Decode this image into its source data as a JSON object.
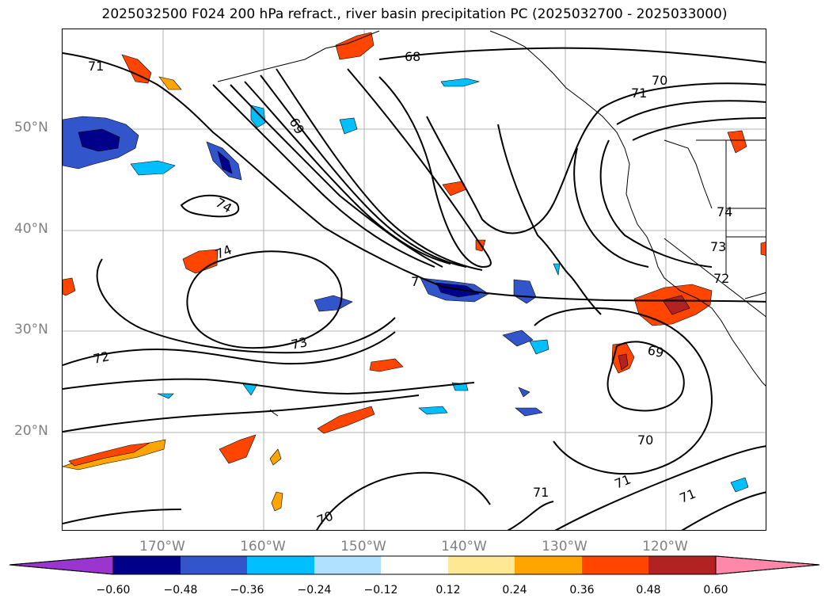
{
  "title": "2025032500 F024 200 hPa refract., river basin precipitation PC (2025032700 - 2025033000)",
  "latitude_labels": [
    "50°N",
    "40°N",
    "30°N",
    "20°N"
  ],
  "longitude_labels": [
    "170°W",
    "160°W",
    "150°W",
    "140°W",
    "130°W",
    "120°W"
  ],
  "contour_labels": [
    "71",
    "68",
    "70",
    "71",
    "69",
    "74",
    "74",
    "74",
    "73",
    "72",
    "7",
    "73",
    "72",
    "69",
    "70",
    "71",
    "71",
    "71",
    "70"
  ],
  "colorbar": {
    "ticks": [
      "−0.60",
      "−0.48",
      "−0.36",
      "−0.24",
      "−0.12",
      "0.12",
      "0.24",
      "0.36",
      "0.48",
      "0.60"
    ],
    "colors": [
      "#9a35cf",
      "#00008b",
      "#3355cc",
      "#00bfff",
      "#b0e2ff",
      "#ffffff",
      "#fee893",
      "#ffa500",
      "#ff4500",
      "#b22222",
      "#ff88aa"
    ]
  },
  "field_colors": {
    "pos_light": "#fee893",
    "pos_orange": "#ffa500",
    "pos_red": "#ff4500",
    "pos_dark": "#b22222",
    "neg_light": "#b0e2ff",
    "neg_sky": "#00bfff",
    "neg_blue": "#3355cc",
    "neg_dark": "#00008b"
  }
}
